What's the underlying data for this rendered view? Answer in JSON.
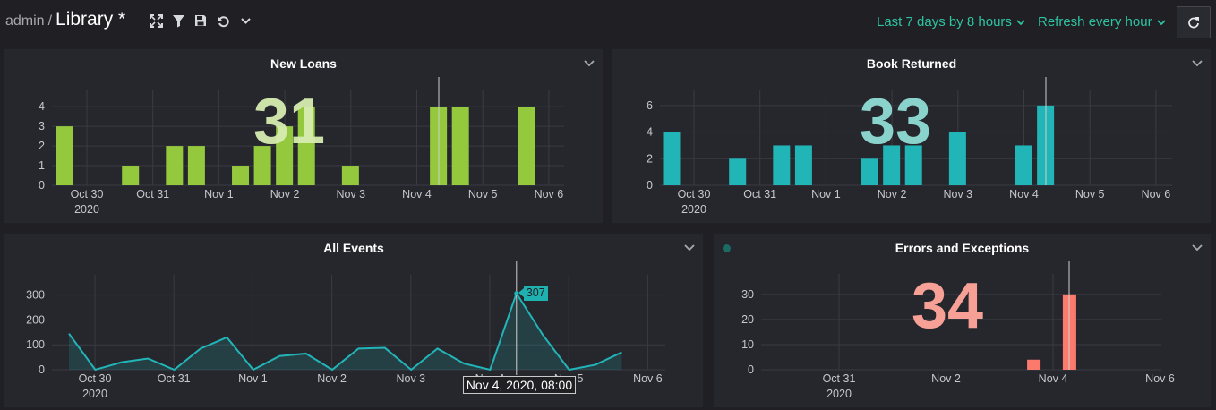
{
  "header": {
    "user": "admin",
    "separator": "/",
    "dashboard_title": "Library *",
    "toolbar_icons": [
      "expand-icon",
      "filter-icon",
      "save-icon",
      "undo-icon",
      "chevron-down-icon"
    ],
    "time_range": "Last 7 days by 8 hours",
    "refresh_interval": "Refresh every hour",
    "accent_color": "#2ec4a2"
  },
  "panels": {
    "new_loans": {
      "title": "New Loans",
      "big_value": "31",
      "color": "#95c93d",
      "big_value_color": "#d6ecb0",
      "x_ticks": [
        "Oct 30",
        "Oct 31",
        "Nov 1",
        "Nov 2",
        "Nov 3",
        "Nov 4",
        "Nov 5",
        "Nov 6"
      ],
      "x_year": "2020",
      "y_ticks": [
        "0",
        "1",
        "2",
        "3",
        "4"
      ]
    },
    "book_returned": {
      "title": "Book Returned",
      "big_value": "33",
      "color": "#22b5b8",
      "big_value_color": "#8fdcd6",
      "x_ticks": [
        "Oct 30",
        "Oct 31",
        "Nov 1",
        "Nov 2",
        "Nov 3",
        "Nov 4",
        "Nov 5",
        "Nov 6"
      ],
      "x_year": "2020",
      "y_ticks": [
        "0",
        "2",
        "4",
        "6"
      ]
    },
    "all_events": {
      "title": "All Events",
      "color": "#22b5b8",
      "x_ticks": [
        "Oct 30",
        "Oct 31",
        "Nov 1",
        "Nov 2",
        "Nov 3",
        "Nov 4",
        "Nov 5",
        "Nov 6"
      ],
      "x_year": "2020",
      "y_ticks": [
        "0",
        "100",
        "200",
        "300"
      ],
      "hover_value": "307",
      "hover_time": "Nov 4, 2020, 08:00"
    },
    "errors": {
      "title": "Errors and Exceptions",
      "big_value": "34",
      "color": "#fb7a6b",
      "big_value_color": "#f7a196",
      "x_ticks": [
        "Oct 31",
        "Nov 2",
        "Nov 4",
        "Nov 6"
      ],
      "x_year": "2020",
      "y_ticks": [
        "0",
        "10",
        "20",
        "30"
      ]
    }
  },
  "chart_data": [
    {
      "type": "bar",
      "title": "New Loans",
      "x": [
        "Oct 29 16:00",
        "Oct 30 00:00",
        "Oct 30 08:00",
        "Oct 30 16:00",
        "Oct 31 00:00",
        "Oct 31 08:00",
        "Oct 31 16:00",
        "Nov 1 00:00",
        "Nov 1 08:00",
        "Nov 1 16:00",
        "Nov 2 00:00",
        "Nov 2 08:00",
        "Nov 2 16:00",
        "Nov 3 00:00",
        "Nov 3 08:00",
        "Nov 3 16:00",
        "Nov 4 00:00",
        "Nov 4 08:00",
        "Nov 4 16:00",
        "Nov 5 00:00",
        "Nov 5 08:00",
        "Nov 5 16:00"
      ],
      "values": [
        3,
        0,
        0,
        1,
        0,
        2,
        2,
        0,
        1,
        2,
        3,
        4,
        0,
        1,
        0,
        0,
        0,
        4,
        4,
        0,
        0,
        4
      ],
      "ylim": [
        0,
        4.6
      ]
    },
    {
      "type": "bar",
      "title": "Book Returned",
      "x": [
        "Oct 29 16:00",
        "Oct 30 00:00",
        "Oct 30 08:00",
        "Oct 30 16:00",
        "Oct 31 00:00",
        "Oct 31 08:00",
        "Oct 31 16:00",
        "Nov 1 00:00",
        "Nov 1 08:00",
        "Nov 1 16:00",
        "Nov 2 00:00",
        "Nov 2 08:00",
        "Nov 2 16:00",
        "Nov 3 00:00",
        "Nov 3 08:00",
        "Nov 3 16:00",
        "Nov 4 00:00",
        "Nov 4 08:00",
        "Nov 4 16:00",
        "Nov 5 00:00",
        "Nov 5 08:00",
        "Nov 5 16:00"
      ],
      "values": [
        4,
        0,
        0,
        2,
        0,
        3,
        3,
        0,
        0,
        2,
        3,
        3,
        0,
        4,
        0,
        0,
        3,
        6,
        0,
        0,
        0,
        0
      ],
      "ylim": [
        0,
        6.8
      ]
    },
    {
      "type": "area",
      "title": "All Events",
      "x": [
        "Oct 29 16:00",
        "Oct 30 00:00",
        "Oct 30 08:00",
        "Oct 30 16:00",
        "Oct 31 00:00",
        "Oct 31 08:00",
        "Oct 31 16:00",
        "Nov 1 00:00",
        "Nov 1 08:00",
        "Nov 1 16:00",
        "Nov 2 00:00",
        "Nov 2 08:00",
        "Nov 2 16:00",
        "Nov 3 00:00",
        "Nov 3 08:00",
        "Nov 3 16:00",
        "Nov 4 00:00",
        "Nov 4 08:00",
        "Nov 4 16:00",
        "Nov 5 00:00",
        "Nov 5 08:00",
        "Nov 5 16:00"
      ],
      "values": [
        145,
        0,
        30,
        45,
        0,
        85,
        130,
        0,
        55,
        65,
        0,
        85,
        88,
        0,
        85,
        25,
        0,
        307,
        140,
        0,
        20,
        70
      ],
      "ylim": [
        0,
        360
      ]
    },
    {
      "type": "bar",
      "title": "Errors and Exceptions",
      "x": [
        "Nov 3 16:00",
        "Nov 4 08:00"
      ],
      "values": [
        4,
        30
      ],
      "ylim": [
        0,
        36
      ]
    }
  ]
}
